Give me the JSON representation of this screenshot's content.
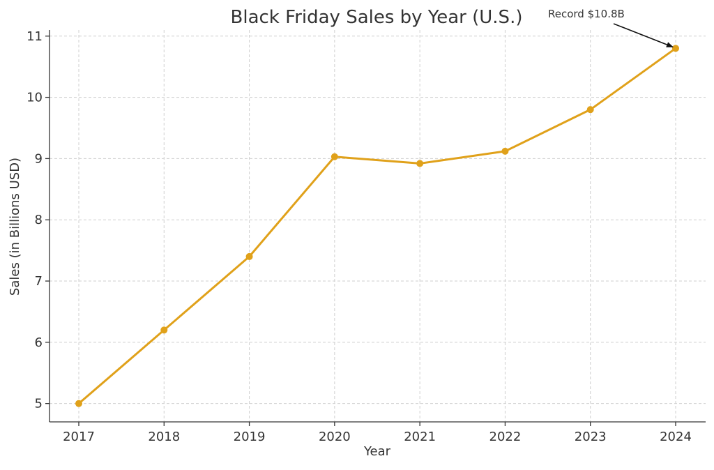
{
  "chart_data": {
    "type": "line",
    "title": "Black Friday Sales by Year (U.S.)",
    "xlabel": "Year",
    "ylabel": "Sales (in Billions USD)",
    "categories": [
      "2017",
      "2018",
      "2019",
      "2020",
      "2021",
      "2022",
      "2023",
      "2024"
    ],
    "series": [
      {
        "values": [
          5.0,
          6.2,
          7.4,
          9.03,
          8.92,
          9.12,
          9.8,
          10.8
        ],
        "color": "#E0A11A"
      }
    ],
    "ylim": [
      4.7,
      11.1
    ],
    "yticks": [
      5,
      6,
      7,
      8,
      9,
      10,
      11
    ],
    "grid": true,
    "legend": "none",
    "annotations": [
      {
        "text": "Record $10.8B",
        "target_category": "2024",
        "target_value": 10.8
      }
    ]
  }
}
